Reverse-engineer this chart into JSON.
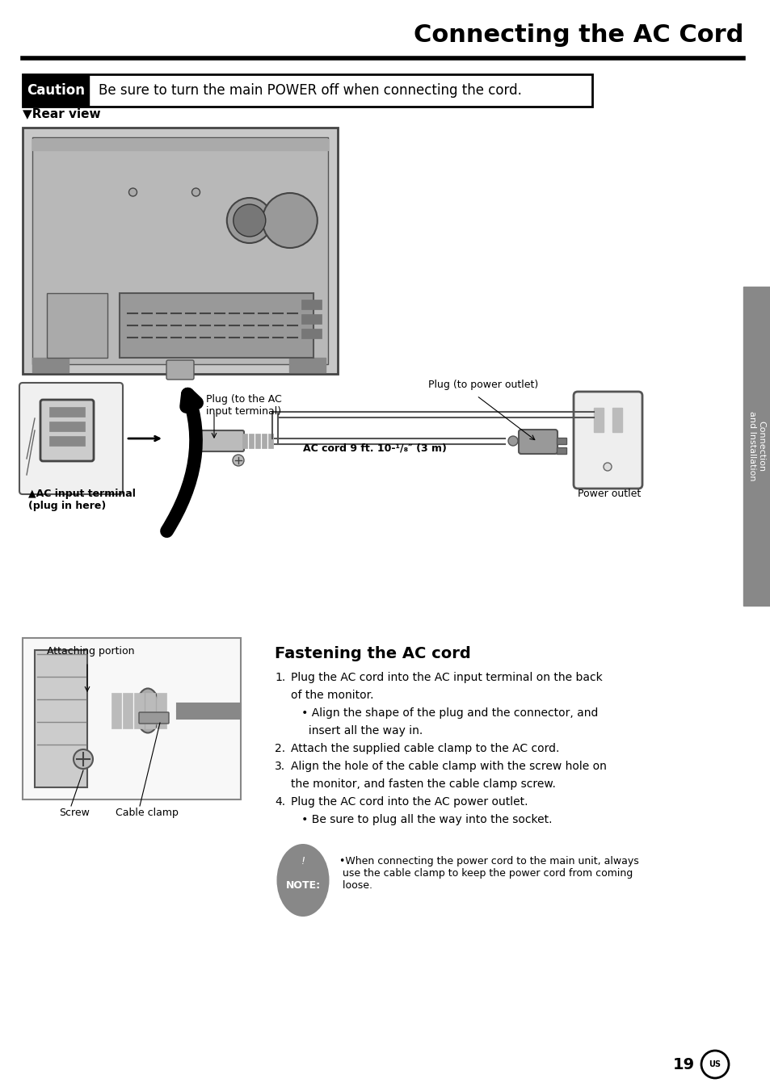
{
  "bg_color": "#ffffff",
  "title": "Connecting the AC Cord",
  "title_fontsize": 22,
  "caution_label": "Caution",
  "caution_text": "Be sure to turn the main POWER off when connecting the cord.",
  "rear_view_label": "▼Rear view",
  "sidebar_text": "Connection\nand Installation",
  "fastening_title": "Fastening the AC cord",
  "instructions": [
    {
      "num": "1.",
      "text": "Plug the AC cord into the AC input terminal on the back\nof the monitor."
    },
    {
      "num": "",
      "text": "• Align the shape of the plug and the connector, and\n  insert all the way in."
    },
    {
      "num": "2.",
      "text": "Attach the supplied cable clamp to the AC cord."
    },
    {
      "num": "3.",
      "text": "Align the hole of the cable clamp with the screw hole on\nthe monitor, and fasten the cable clamp screw."
    },
    {
      "num": "4.",
      "text": "Plug the AC cord into the AC power outlet."
    },
    {
      "num": "",
      "text": "• Be sure to plug all the way into the socket."
    }
  ],
  "note_content": "•When connecting the power cord to the main unit, always\n use the cable clamp to keep the power cord from coming\n loose.",
  "page_number": "19",
  "label_plug_ac": "Plug (to the AC\ninput terminal)",
  "label_plug_power": "Plug (to power outlet)",
  "label_ac_cord": "AC cord 9 ft. 10-¹/₈″ (3 m)",
  "label_ac_terminal": "▲AC input terminal\n(plug in here)",
  "label_power_outlet": "Power outlet",
  "label_attaching": "Attaching portion",
  "label_screw": "Screw",
  "label_cable_clamp": "Cable clamp"
}
